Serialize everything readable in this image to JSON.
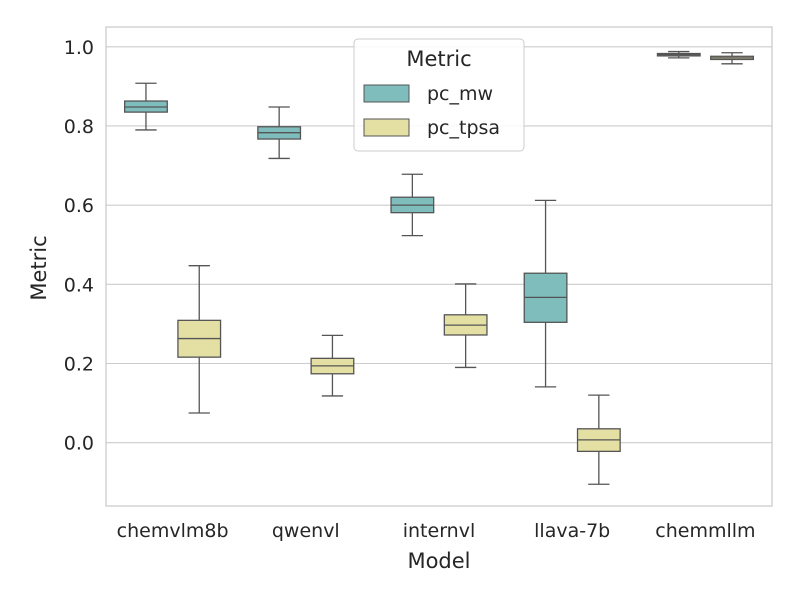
{
  "chart_data": {
    "type": "box",
    "title": "",
    "xlabel": "Model",
    "ylabel": "Metric",
    "ylim": [
      -0.16,
      1.05
    ],
    "yticks": [
      0.0,
      0.2,
      0.4,
      0.6,
      0.8,
      1.0
    ],
    "ytick_labels": [
      "0.0",
      "0.2",
      "0.4",
      "0.6",
      "0.8",
      "1.0"
    ],
    "categories": [
      "chemvlm8b",
      "qwenvl",
      "internvl",
      "llava-7b",
      "chemmllm"
    ],
    "grid": "horizontal",
    "legend": {
      "title": "Metric",
      "placement": "top-center",
      "entries": [
        "pc_mw",
        "pc_tpsa"
      ]
    },
    "series": [
      {
        "name": "pc_mw",
        "color": "#7fbcbc",
        "boxes": [
          {
            "category": "chemvlm8b",
            "whisker_low": 0.79,
            "q1": 0.835,
            "median": 0.848,
            "q3": 0.863,
            "whisker_high": 0.908
          },
          {
            "category": "qwenvl",
            "whisker_low": 0.718,
            "q1": 0.767,
            "median": 0.783,
            "q3": 0.798,
            "whisker_high": 0.848
          },
          {
            "category": "internvl",
            "whisker_low": 0.523,
            "q1": 0.581,
            "median": 0.6,
            "q3": 0.62,
            "whisker_high": 0.678
          },
          {
            "category": "llava-7b",
            "whisker_low": 0.141,
            "q1": 0.304,
            "median": 0.367,
            "q3": 0.428,
            "whisker_high": 0.612
          },
          {
            "category": "chemmllm",
            "whisker_low": 0.972,
            "q1": 0.977,
            "median": 0.98,
            "q3": 0.983,
            "whisker_high": 0.988
          }
        ]
      },
      {
        "name": "pc_tpsa",
        "color": "#e4dfa3",
        "boxes": [
          {
            "category": "chemvlm8b",
            "whisker_low": 0.075,
            "q1": 0.216,
            "median": 0.263,
            "q3": 0.309,
            "whisker_high": 0.447
          },
          {
            "category": "qwenvl",
            "whisker_low": 0.118,
            "q1": 0.174,
            "median": 0.194,
            "q3": 0.213,
            "whisker_high": 0.271
          },
          {
            "category": "internvl",
            "whisker_low": 0.19,
            "q1": 0.272,
            "median": 0.297,
            "q3": 0.323,
            "whisker_high": 0.401
          },
          {
            "category": "llava-7b",
            "whisker_low": -0.105,
            "q1": -0.022,
            "median": 0.007,
            "q3": 0.035,
            "whisker_high": 0.12
          },
          {
            "category": "chemmllm",
            "whisker_low": 0.957,
            "q1": 0.968,
            "median": 0.972,
            "q3": 0.976,
            "whisker_high": 0.985
          }
        ]
      }
    ]
  }
}
